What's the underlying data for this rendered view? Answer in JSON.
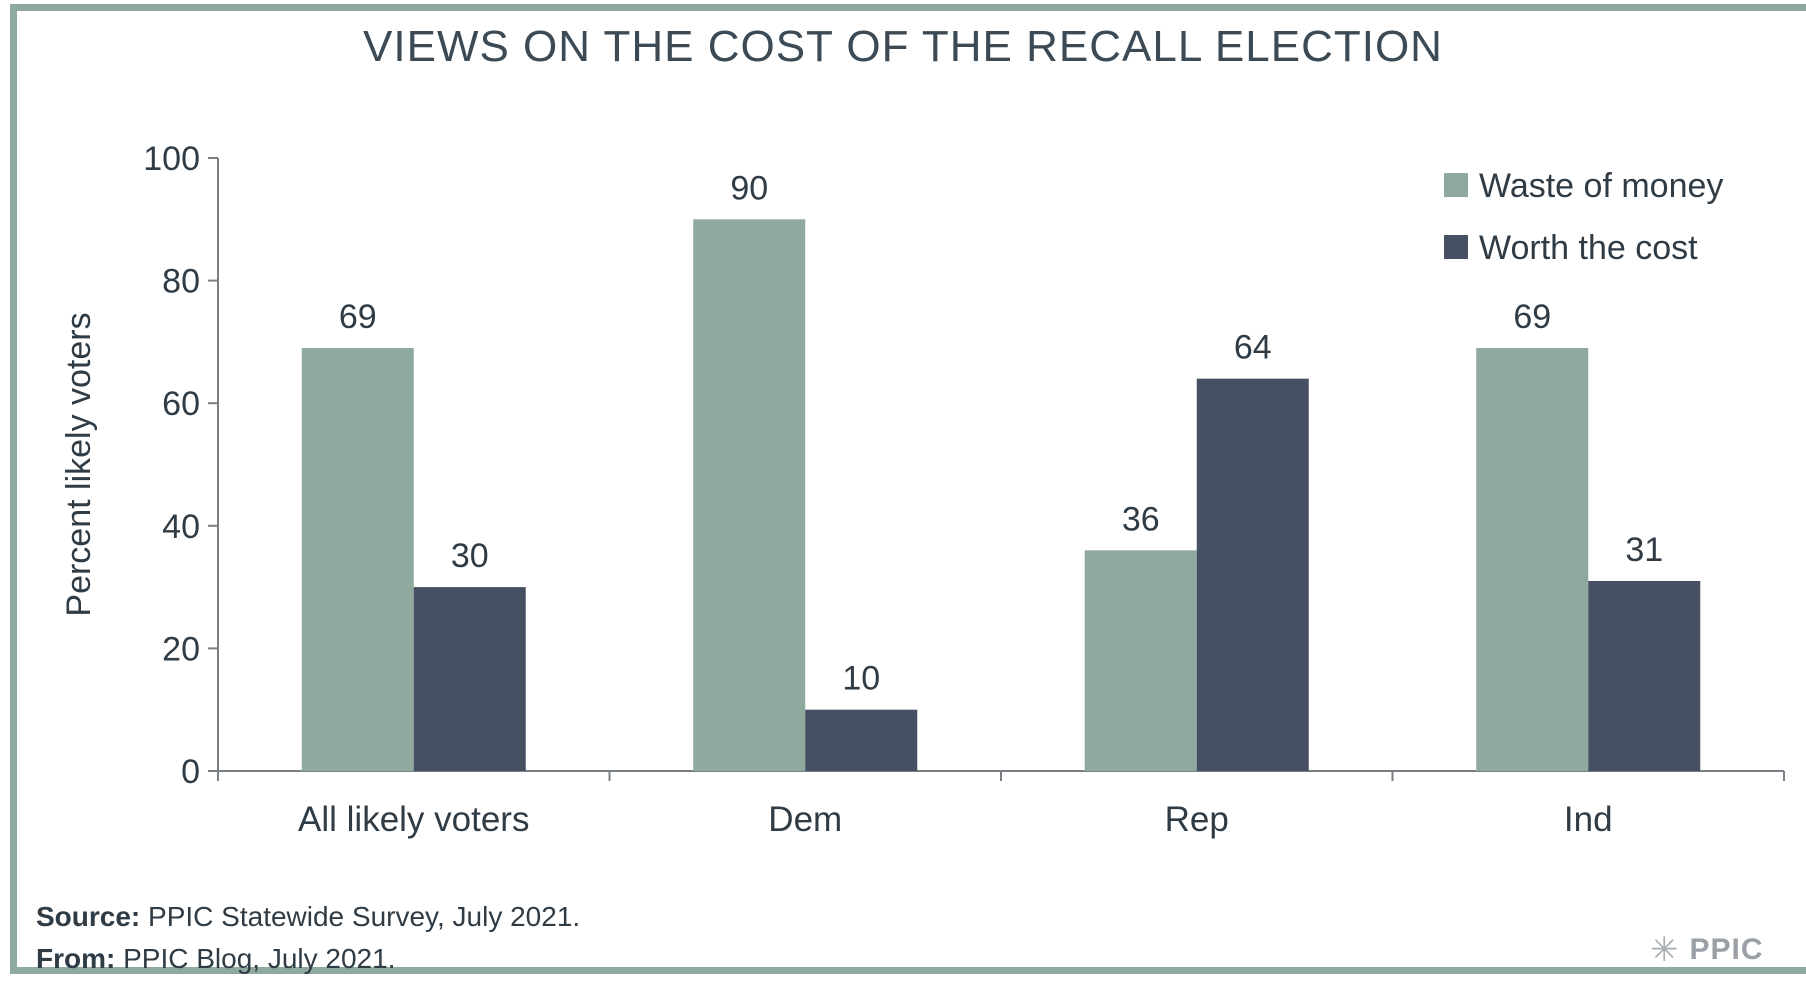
{
  "chart_data": {
    "type": "bar",
    "title": "VIEWS ON THE COST OF THE RECALL ELECTION",
    "xlabel": "",
    "ylabel": "Percent likely voters",
    "ylim": [
      0,
      100
    ],
    "yticks": [
      0,
      20,
      40,
      60,
      80,
      100
    ],
    "categories": [
      "All likely voters",
      "Dem",
      "Rep",
      "Ind"
    ],
    "series": [
      {
        "name": "Waste of money",
        "values": [
          69,
          90,
          36,
          69
        ],
        "color": "#8fa99e"
      },
      {
        "name": "Worth the cost",
        "values": [
          30,
          10,
          64,
          31
        ],
        "color": "#474f62"
      }
    ],
    "legend_position": "top-right",
    "grid": false
  },
  "footer": {
    "source_label": "Source:",
    "source_text": " PPIC Statewide Survey, July 2021.",
    "from_label": "From:",
    "from_text": " PPIC Blog, July 2021."
  },
  "logo": {
    "text": "PPIC",
    "icon": "starburst-icon"
  }
}
